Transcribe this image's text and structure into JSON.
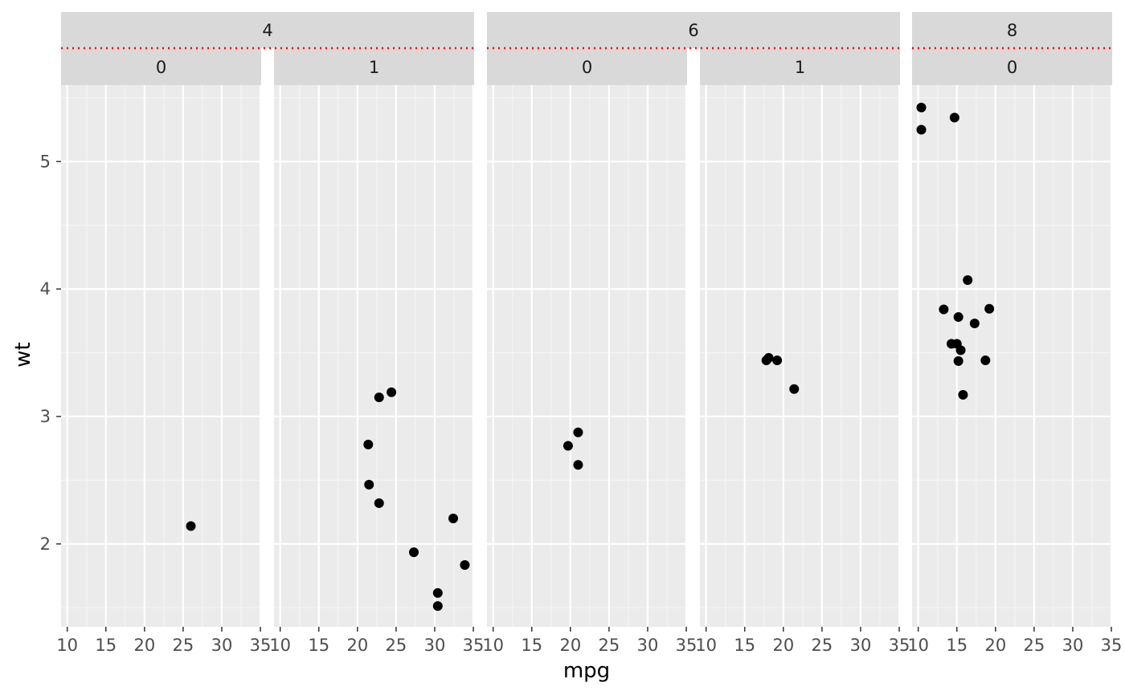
{
  "chart_data": {
    "type": "scatter",
    "title": "",
    "xlabel": "mpg",
    "ylabel": "wt",
    "xlim": [
      9.2,
      35.1
    ],
    "ylim": [
      1.35,
      5.6
    ],
    "x_ticks": [
      10,
      15,
      20,
      25,
      30,
      35
    ],
    "y_ticks": [
      2,
      3,
      4,
      5
    ],
    "grid": true,
    "legend": "none",
    "facet_rows": "cyl / vs",
    "groups": [
      {
        "label": "4",
        "panels": [
          0,
          1
        ]
      },
      {
        "label": "6",
        "panels": [
          2,
          3
        ]
      },
      {
        "label": "8",
        "panels": [
          4
        ]
      }
    ],
    "panels": [
      {
        "label": "0",
        "x": [
          26.0
        ],
        "y": [
          2.14
        ]
      },
      {
        "label": "1",
        "x": [
          22.8,
          24.4,
          22.8,
          32.4,
          30.4,
          33.9,
          21.5,
          27.3,
          30.4,
          21.4
        ],
        "y": [
          2.32,
          3.19,
          3.15,
          2.2,
          1.615,
          1.835,
          2.465,
          1.935,
          1.513,
          2.78
        ]
      },
      {
        "label": "0",
        "x": [
          21.0,
          21.0,
          19.7
        ],
        "y": [
          2.62,
          2.875,
          2.77
        ]
      },
      {
        "label": "1",
        "x": [
          21.4,
          18.1,
          19.2,
          17.8
        ],
        "y": [
          3.215,
          3.46,
          3.44,
          3.44
        ]
      },
      {
        "label": "0",
        "x": [
          18.7,
          14.3,
          16.4,
          17.3,
          15.2,
          10.4,
          10.4,
          14.7,
          15.5,
          15.2,
          13.3,
          19.2,
          15.8,
          15.0
        ],
        "y": [
          3.44,
          3.57,
          4.07,
          3.73,
          3.78,
          5.25,
          5.424,
          5.345,
          3.52,
          3.435,
          3.84,
          3.845,
          3.17,
          3.57
        ]
      }
    ]
  },
  "colors": {
    "panel_bg": "#ebebeb",
    "strip_bg": "#d9d9d9",
    "grid_major": "#ffffff",
    "grid_minor": "#f5f5f5",
    "point": "#000000",
    "separator": "#ff0000",
    "tick": "#333333"
  }
}
